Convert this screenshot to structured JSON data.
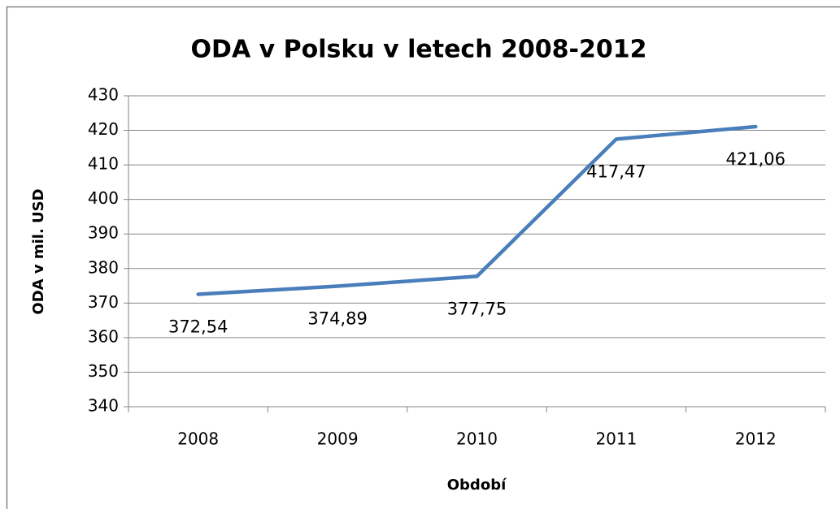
{
  "chart_data": {
    "type": "line",
    "title": "ODA v Polsku v letech 2008-2012",
    "x_label": "Období",
    "y_label": "ODA v mil. USD",
    "categories": [
      "2008",
      "2009",
      "2010",
      "2011",
      "2012"
    ],
    "series": [
      {
        "name": "ODA",
        "color": "#4a7ebb",
        "values": [
          372.54,
          374.89,
          377.75,
          417.47,
          421.06
        ],
        "value_labels": [
          "372,54",
          "374,89",
          "377,75",
          "417,47",
          "421,06"
        ]
      }
    ],
    "ylim": [
      340,
      430
    ],
    "yticks": [
      340,
      350,
      360,
      370,
      380,
      390,
      400,
      410,
      420,
      430
    ],
    "grid": true
  }
}
